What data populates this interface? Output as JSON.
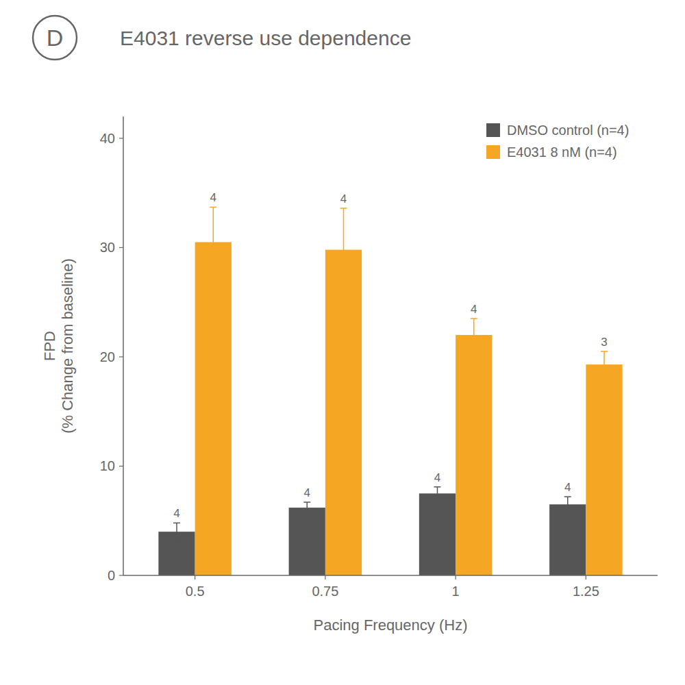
{
  "chart_data": {
    "type": "bar",
    "title": "E4031 reverse use dependence",
    "annotations": [
      "D"
    ],
    "xlabel": "Pacing Frequency (Hz)",
    "ylabel": "FPD\n(% Change from baseline)",
    "categories": [
      "0.5",
      "0.75",
      "1",
      "1.25"
    ],
    "series": [
      {
        "name": "DMSO control (n=4)",
        "color": "#555555",
        "values": [
          4.0,
          6.2,
          7.5,
          6.5
        ],
        "errors": [
          0.8,
          0.5,
          0.6,
          0.7
        ],
        "n": [
          4,
          4,
          4,
          4
        ]
      },
      {
        "name": "E4031 8 nM (n=4)",
        "color": "#F5A623",
        "values": [
          30.5,
          29.8,
          22.0,
          19.3
        ],
        "errors": [
          3.2,
          3.8,
          1.5,
          1.2
        ],
        "n": [
          4,
          4,
          4,
          3
        ]
      }
    ],
    "ylim": [
      0,
      42
    ],
    "yticks": [
      0,
      10,
      20,
      30,
      40
    ],
    "grid": false,
    "legend": "upper right"
  }
}
